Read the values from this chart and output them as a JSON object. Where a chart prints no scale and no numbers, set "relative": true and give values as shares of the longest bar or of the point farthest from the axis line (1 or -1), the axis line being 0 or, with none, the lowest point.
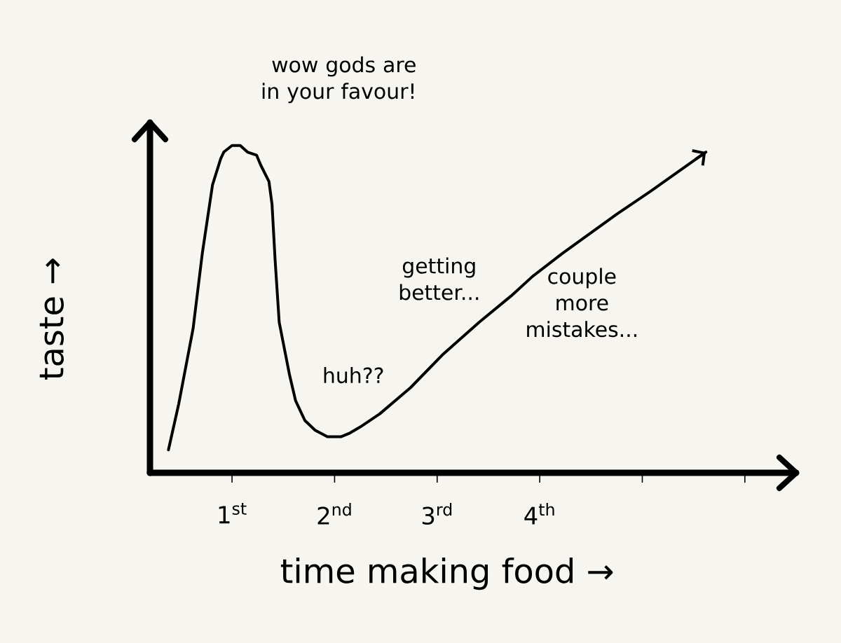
{
  "chart_data": {
    "type": "line",
    "relative": true,
    "xlabel": "time making food →",
    "ylabel": "taste →",
    "x": [
      0.38,
      0.48,
      0.62,
      0.71,
      0.81,
      0.89,
      0.92,
      1.0,
      1.08,
      1.15,
      1.24,
      1.28,
      1.36,
      1.39,
      1.42,
      1.46,
      1.56,
      1.62,
      1.71,
      1.81,
      1.93,
      2.06,
      2.14,
      2.25,
      2.44,
      2.74,
      3.05,
      3.41,
      3.72,
      3.93,
      4.22,
      4.75,
      5.08,
      5.62
    ],
    "xlim": [
      0.2,
      6.5
    ],
    "xticks": [
      {
        "value": 1,
        "label": "1$^{st}$"
      },
      {
        "value": 2,
        "label": "2$^{nd}$"
      },
      {
        "value": 3,
        "label": "3$^{rd}$"
      },
      {
        "value": 4,
        "label": "4$^{th}$"
      },
      {
        "value": 5,
        "label": null
      },
      {
        "value": 6,
        "label": null
      }
    ],
    "series": [
      {
        "color": "#000000",
        "values": [
          0.07,
          0.21,
          0.44,
          0.67,
          0.88,
          0.96,
          0.98,
          1.0,
          1.0,
          0.98,
          0.97,
          0.94,
          0.89,
          0.82,
          0.65,
          0.46,
          0.3,
          0.22,
          0.16,
          0.13,
          0.11,
          0.11,
          0.12,
          0.14,
          0.18,
          0.26,
          0.36,
          0.46,
          0.54,
          0.6,
          0.67,
          0.79,
          0.86,
          0.98
        ]
      }
    ],
    "annotations": [
      "wow gods are in your favour!",
      {
        "text": "huh??",
        "x": 1.93,
        "y": 0.11
      },
      {
        "text": "getting better...",
        "x": 3.41,
        "y": 0.46
      },
      {
        "text": "couple more mistakes...",
        "x": 4.22,
        "y": 0.67
      }
    ],
    "marker": "none",
    "line_style": "solid"
  }
}
